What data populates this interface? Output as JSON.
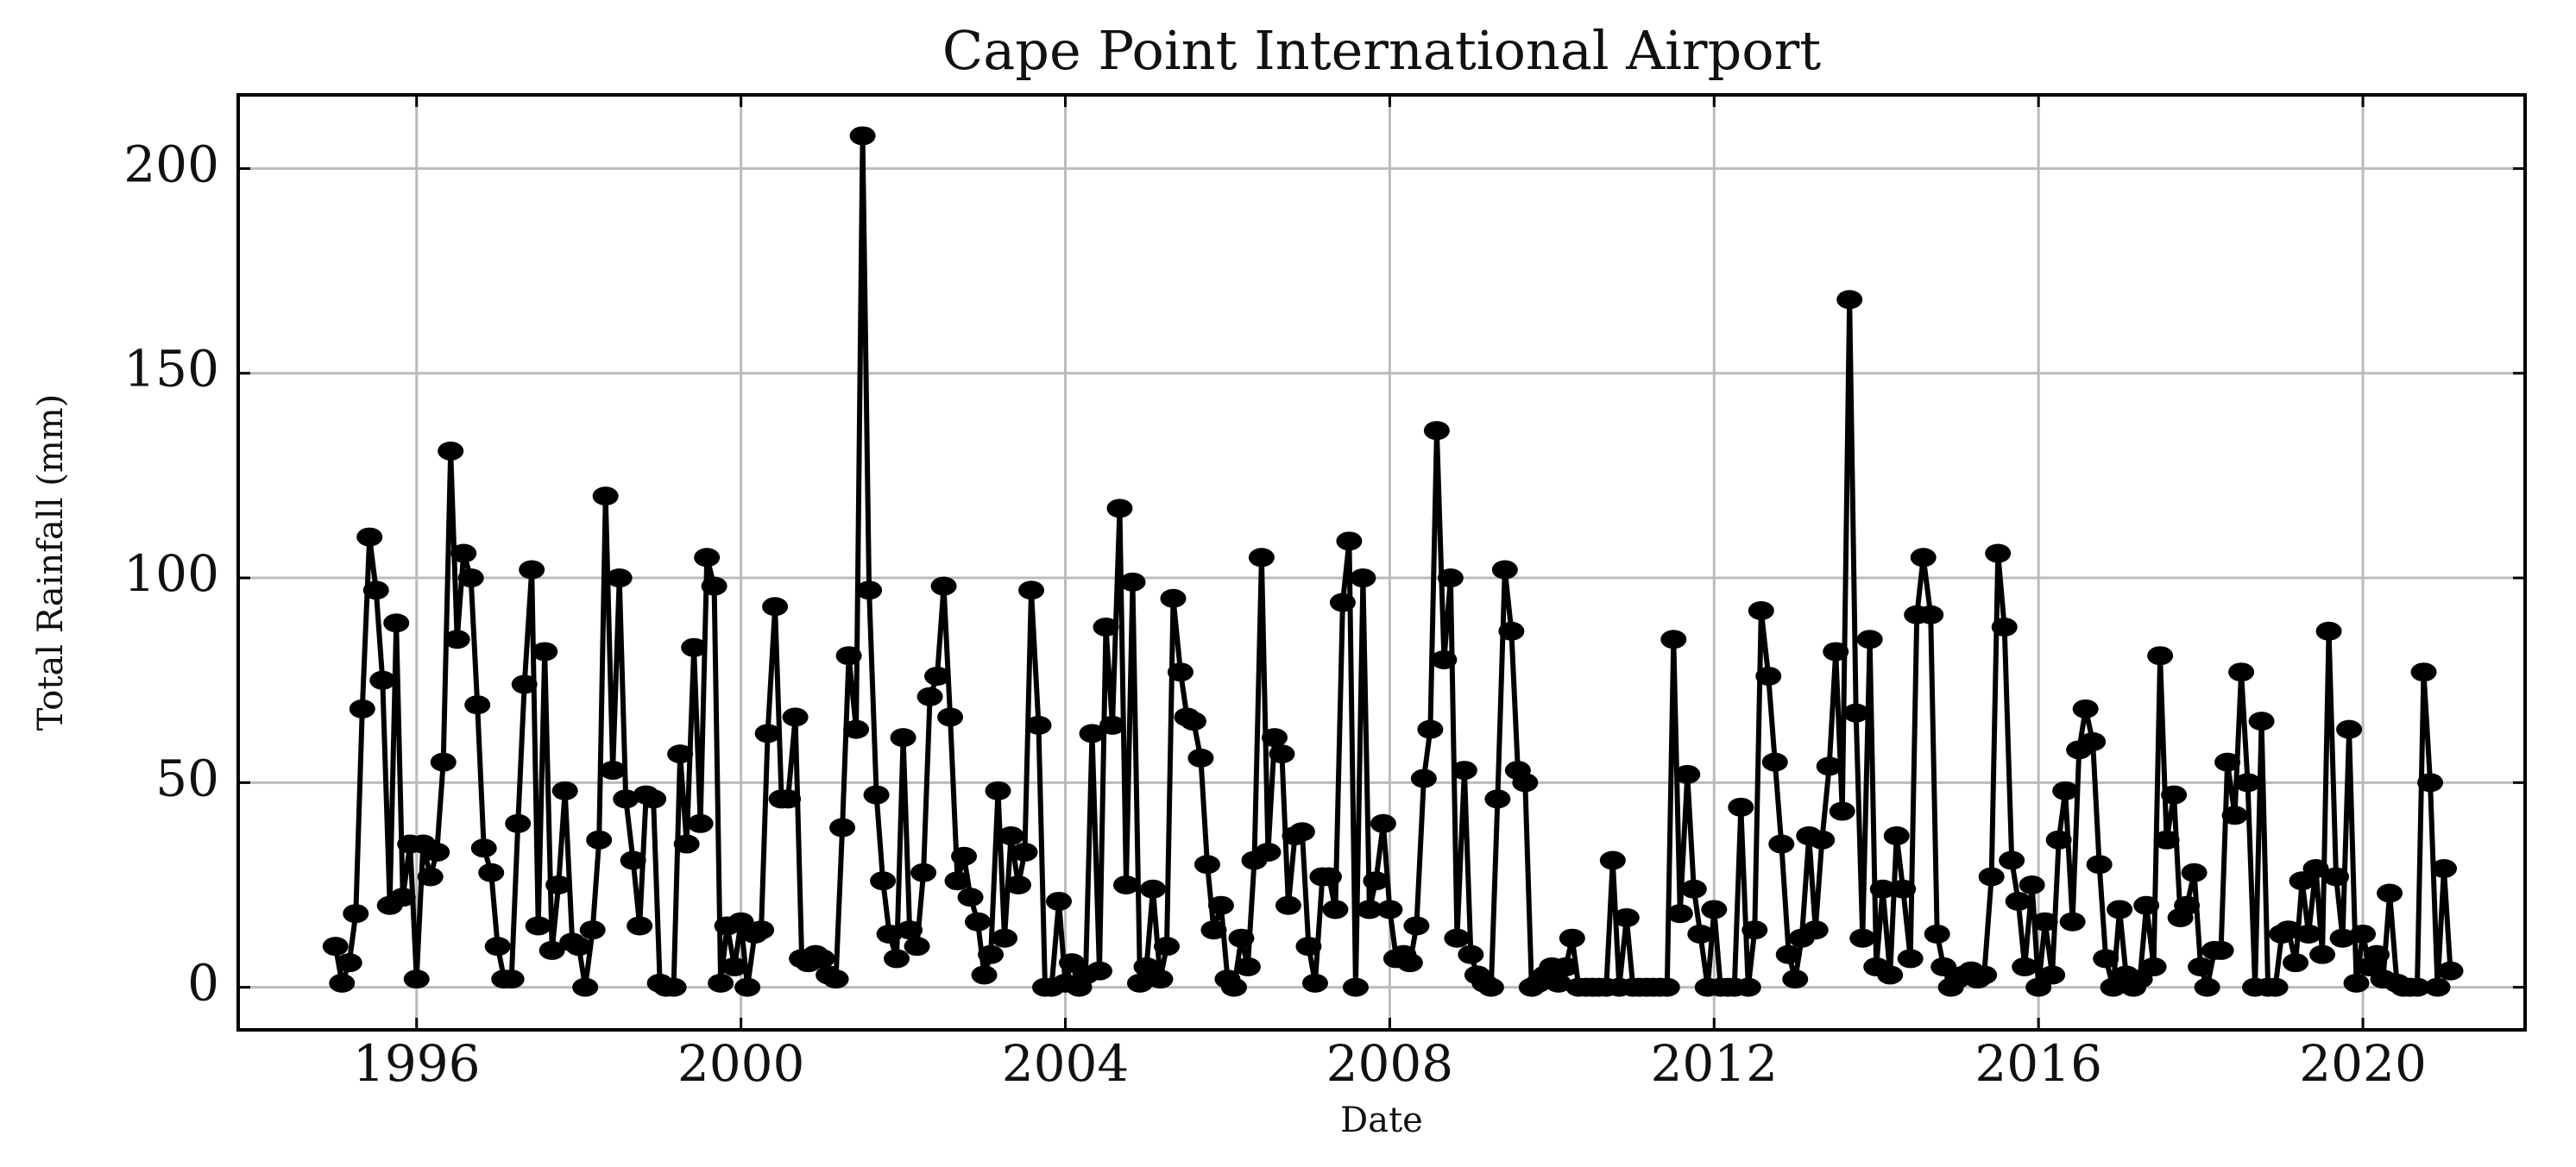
{
  "chart_data": {
    "type": "line",
    "title": "Cape Point International Airport",
    "x_label": "Date",
    "y_label": "Total Rainfall (mm)",
    "x": [
      1995,
      1995.08,
      1995.17,
      1995.25,
      1995.33,
      1995.42,
      1995.5,
      1995.58,
      1995.67,
      1995.75,
      1995.83,
      1995.92,
      1996,
      1996.08,
      1996.17,
      1996.25,
      1996.33,
      1996.42,
      1996.5,
      1996.58,
      1996.67,
      1996.75,
      1996.83,
      1996.92,
      1997,
      1997.08,
      1997.17,
      1997.25,
      1997.33,
      1997.42,
      1997.5,
      1997.58,
      1997.67,
      1997.75,
      1997.83,
      1997.92,
      1998,
      1998.08,
      1998.17,
      1998.25,
      1998.33,
      1998.42,
      1998.5,
      1998.58,
      1998.67,
      1998.75,
      1998.83,
      1998.92,
      1999,
      1999.08,
      1999.17,
      1999.25,
      1999.33,
      1999.42,
      1999.5,
      1999.58,
      1999.67,
      1999.75,
      1999.83,
      1999.92,
      2000,
      2000.08,
      2000.17,
      2000.25,
      2000.33,
      2000.42,
      2000.5,
      2000.58,
      2000.67,
      2000.75,
      2000.83,
      2000.92,
      2001,
      2001.08,
      2001.17,
      2001.25,
      2001.33,
      2001.42,
      2001.5,
      2001.58,
      2001.67,
      2001.75,
      2001.83,
      2001.92,
      2002,
      2002.08,
      2002.17,
      2002.25,
      2002.33,
      2002.42,
      2002.5,
      2002.58,
      2002.67,
      2002.75,
      2002.83,
      2002.92,
      2003,
      2003.08,
      2003.17,
      2003.25,
      2003.33,
      2003.42,
      2003.5,
      2003.58,
      2003.67,
      2003.75,
      2003.83,
      2003.92,
      2004,
      2004.08,
      2004.17,
      2004.25,
      2004.33,
      2004.42,
      2004.5,
      2004.58,
      2004.67,
      2004.75,
      2004.83,
      2004.92,
      2005,
      2005.08,
      2005.17,
      2005.25,
      2005.33,
      2005.42,
      2005.5,
      2005.58,
      2005.67,
      2005.75,
      2005.83,
      2005.92,
      2006,
      2006.08,
      2006.17,
      2006.25,
      2006.33,
      2006.42,
      2006.5,
      2006.58,
      2006.67,
      2006.75,
      2006.83,
      2006.92,
      2007,
      2007.08,
      2007.17,
      2007.25,
      2007.33,
      2007.42,
      2007.5,
      2007.58,
      2007.67,
      2007.75,
      2007.83,
      2007.92,
      2008,
      2008.08,
      2008.17,
      2008.25,
      2008.33,
      2008.42,
      2008.5,
      2008.58,
      2008.67,
      2008.75,
      2008.83,
      2008.92,
      2009,
      2009.08,
      2009.17,
      2009.25,
      2009.33,
      2009.42,
      2009.5,
      2009.58,
      2009.67,
      2009.75,
      2009.83,
      2009.92,
      2010,
      2010.08,
      2010.17,
      2010.25,
      2010.33,
      2010.42,
      2010.5,
      2010.58,
      2010.67,
      2010.75,
      2010.83,
      2010.92,
      2011,
      2011.08,
      2011.17,
      2011.25,
      2011.33,
      2011.42,
      2011.5,
      2011.58,
      2011.67,
      2011.75,
      2011.83,
      2011.92,
      2012,
      2012.08,
      2012.17,
      2012.25,
      2012.33,
      2012.42,
      2012.5,
      2012.58,
      2012.67,
      2012.75,
      2012.83,
      2012.92,
      2013,
      2013.08,
      2013.17,
      2013.25,
      2013.33,
      2013.42,
      2013.5,
      2013.58,
      2013.67,
      2013.75,
      2013.83,
      2013.92,
      2014,
      2014.08,
      2014.17,
      2014.25,
      2014.33,
      2014.42,
      2014.5,
      2014.58,
      2014.67,
      2014.75,
      2014.83,
      2014.92,
      2015,
      2015.08,
      2015.17,
      2015.25,
      2015.33,
      2015.42,
      2015.5,
      2015.58,
      2015.67,
      2015.75,
      2015.83,
      2015.92,
      2016,
      2016.08,
      2016.17,
      2016.25,
      2016.33,
      2016.42,
      2016.5,
      2016.58,
      2016.67,
      2016.75,
      2016.83,
      2016.92,
      2017,
      2017.08,
      2017.17,
      2017.25,
      2017.33,
      2017.42,
      2017.5,
      2017.58,
      2017.67,
      2017.75,
      2017.83,
      2017.92,
      2018,
      2018.08,
      2018.17,
      2018.25,
      2018.33,
      2018.42,
      2018.5,
      2018.58,
      2018.67,
      2018.75,
      2018.83,
      2018.92,
      2019,
      2019.08,
      2019.17,
      2019.25,
      2019.33,
      2019.42,
      2019.5,
      2019.58,
      2019.67,
      2019.75,
      2019.83,
      2019.92,
      2020,
      2020.08,
      2020.17,
      2020.25,
      2020.33,
      2020.42,
      2020.5,
      2020.58,
      2020.67,
      2020.75,
      2020.83,
      2020.92,
      2021,
      2021.08
    ],
    "series": [
      {
        "color": "#000000",
        "values": [
          10,
          1,
          6,
          18,
          68,
          110,
          97,
          75,
          20,
          89,
          22,
          35,
          2,
          35,
          27,
          33,
          55,
          131,
          85,
          106,
          100,
          69,
          34,
          28,
          10,
          2,
          2,
          40,
          74,
          102,
          15,
          82,
          9,
          25,
          48,
          11,
          10,
          0,
          14,
          36,
          120,
          53,
          100,
          46,
          31,
          15,
          47,
          46,
          1,
          0,
          0,
          57,
          35,
          83,
          40,
          105,
          98,
          1,
          15,
          5,
          16,
          0,
          13,
          14,
          62,
          93,
          46,
          46,
          66,
          7,
          6,
          8,
          7,
          3,
          2,
          39,
          81,
          63,
          208,
          97,
          47,
          26,
          13,
          7,
          61,
          14,
          10,
          28,
          71,
          76,
          98,
          66,
          26,
          32,
          22,
          16,
          3,
          8,
          48,
          12,
          37,
          25,
          33,
          97,
          64,
          0,
          0,
          21,
          1,
          6,
          0,
          3,
          62,
          4,
          88,
          64,
          117,
          25,
          99,
          1,
          5,
          24,
          2,
          10,
          95,
          77,
          66,
          65,
          56,
          30,
          14,
          20,
          2,
          0,
          12,
          5,
          31,
          105,
          33,
          61,
          57,
          20,
          37,
          38,
          10,
          1,
          27,
          27,
          19,
          94,
          109,
          0,
          100,
          19,
          26,
          40,
          19,
          7,
          8,
          6,
          15,
          51,
          63,
          136,
          80,
          100,
          12,
          53,
          8,
          3,
          1,
          0,
          46,
          102,
          87,
          53,
          50,
          0,
          1,
          3,
          5,
          1,
          5,
          12,
          0,
          0,
          0,
          0,
          0,
          31,
          0,
          17,
          0,
          0,
          0,
          0,
          0,
          0,
          85,
          18,
          52,
          24,
          13,
          0,
          19,
          0,
          0,
          0,
          44,
          0,
          14,
          92,
          76,
          55,
          35,
          8,
          2,
          12,
          37,
          14,
          36,
          54,
          82,
          43,
          168,
          67,
          12,
          85,
          5,
          24,
          3,
          37,
          24,
          7,
          91,
          105,
          91,
          13,
          5,
          0,
          2,
          3,
          4,
          2,
          3,
          27,
          106,
          88,
          31,
          21,
          5,
          25,
          0,
          16,
          3,
          36,
          48,
          16,
          58,
          68,
          60,
          30,
          7,
          0,
          19,
          3,
          0,
          2,
          20,
          5,
          81,
          36,
          47,
          17,
          20,
          28,
          5,
          0,
          9,
          9,
          55,
          42,
          77,
          50,
          0,
          65,
          0,
          0,
          13,
          14,
          6,
          26,
          13,
          29,
          8,
          87,
          27,
          12,
          63,
          1,
          13,
          5,
          8,
          2,
          23,
          1,
          0,
          0,
          0,
          77,
          50,
          0,
          29,
          4
        ]
      }
    ],
    "xlim": [
      1993.8,
      2022.0
    ],
    "ylim": [
      -10.4,
      218
    ],
    "xticks": [
      1996,
      2000,
      2004,
      2008,
      2012,
      2016,
      2020
    ],
    "yticks": [
      0,
      50,
      100,
      150,
      200
    ],
    "grid": true
  }
}
